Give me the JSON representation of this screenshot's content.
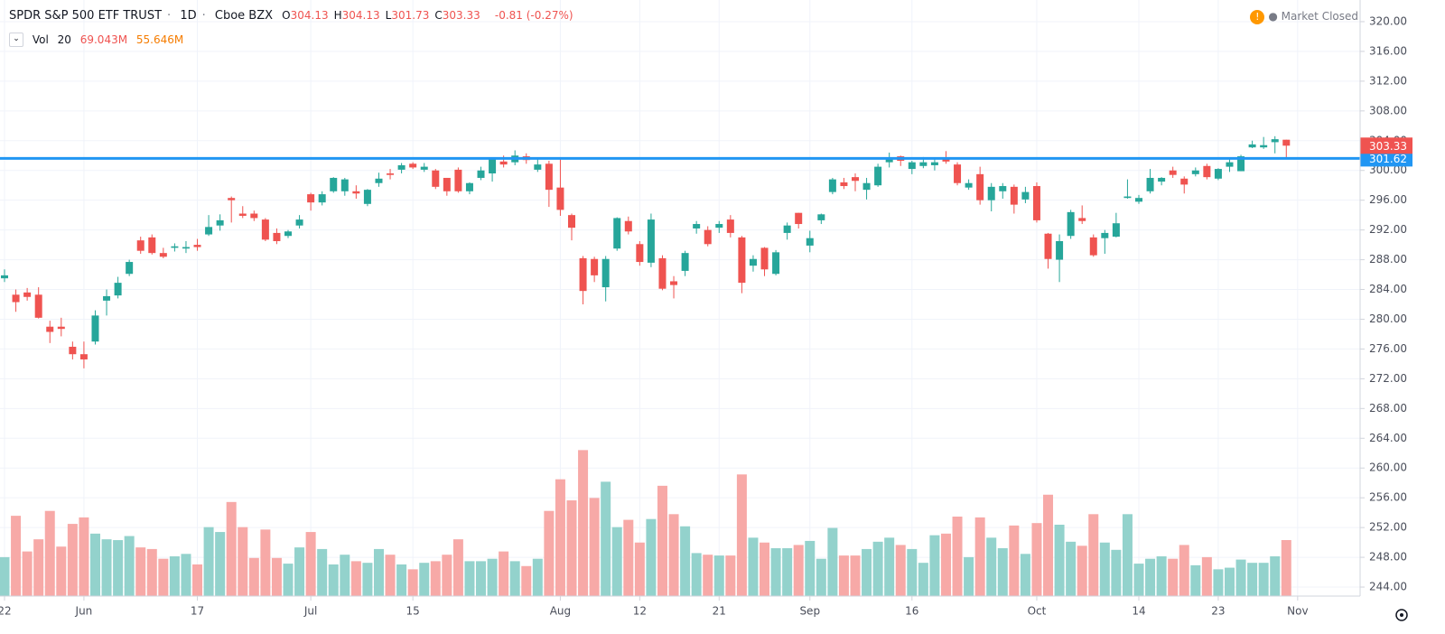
{
  "header": {
    "symbol": "SPDR S&P 500 ETF TRUST",
    "interval": "1D",
    "exchange": "Cboe BZX",
    "ohlc": [
      {
        "key": "O",
        "text": "304.13"
      },
      {
        "key": "H",
        "text": "304.13"
      },
      {
        "key": "L",
        "text": "301.73"
      },
      {
        "key": "C",
        "text": "303.33"
      }
    ],
    "change": "-0.81 (-0.27%)",
    "status": "Market Closed",
    "volume_study": {
      "name": "Vol",
      "length": "20",
      "value": "69.043M",
      "average": "55.646M"
    }
  },
  "chart_data": {
    "type": "candlestick",
    "categories": [
      "22",
      null,
      null,
      null,
      null,
      null,
      null,
      "Jun",
      null,
      null,
      null,
      null,
      null,
      null,
      null,
      null,
      null,
      "17",
      null,
      null,
      null,
      null,
      null,
      null,
      null,
      null,
      null,
      "Jul",
      null,
      null,
      null,
      null,
      null,
      null,
      null,
      null,
      "15",
      null,
      null,
      null,
      null,
      null,
      null,
      null,
      null,
      null,
      null,
      null,
      null,
      "Aug",
      null,
      null,
      null,
      null,
      null,
      null,
      "12",
      null,
      null,
      null,
      null,
      null,
      null,
      "21",
      null,
      null,
      null,
      null,
      null,
      null,
      null,
      "Sep",
      null,
      null,
      null,
      null,
      null,
      null,
      null,
      null,
      "16",
      null,
      null,
      null,
      null,
      null,
      null,
      null,
      null,
      null,
      null,
      "Oct",
      null,
      null,
      null,
      null,
      null,
      null,
      null,
      null,
      "14",
      null,
      null,
      null,
      null,
      null,
      null,
      "23",
      null,
      null,
      null,
      null,
      null,
      null,
      "Nov"
    ],
    "open": [
      285.5,
      283.3,
      283.6,
      283.3,
      279.0,
      279.0,
      276.3,
      275.3,
      277.0,
      282.5,
      283.2,
      286.1,
      290.6,
      291.0,
      288.9,
      289.6,
      289.5,
      290.0,
      291.4,
      292.6,
      296.3,
      294.2,
      294.2,
      293.4,
      291.6,
      291.2,
      292.6,
      296.8,
      295.7,
      297.2,
      297.2,
      297.2,
      295.5,
      298.3,
      299.6,
      300.1,
      300.9,
      300.1,
      300.0,
      299.0,
      300.1,
      297.2,
      299.0,
      299.6,
      301.2,
      301.1,
      301.9,
      300.1,
      300.9,
      297.7,
      294.0,
      288.2,
      288.1,
      284.3,
      289.5,
      293.2,
      290.1,
      287.6,
      288.2,
      285.1,
      286.5,
      292.2,
      292.0,
      292.3,
      293.4,
      291.0,
      287.2,
      289.6,
      286.1,
      291.6,
      294.3,
      289.9,
      293.3,
      297.1,
      298.4,
      299.1,
      297.4,
      298.0,
      301.1,
      301.9,
      300.2,
      300.6,
      300.7,
      301.7,
      300.8,
      297.7,
      299.5,
      296.0,
      297.2,
      297.8,
      296.1,
      297.9,
      291.5,
      288.0,
      291.2,
      293.6,
      291.0,
      290.9,
      291.1,
      296.3,
      295.8,
      297.2,
      298.5,
      300.0,
      298.9,
      299.5,
      300.6,
      298.9,
      300.5,
      299.9,
      303.1,
      303.1,
      303.8,
      304.13,
      null
    ],
    "high": [
      286.7,
      284.0,
      284.2,
      284.3,
      279.8,
      280.2,
      277.0,
      277.0,
      281.2,
      284.0,
      285.7,
      288.0,
      291.1,
      291.4,
      289.6,
      290.2,
      290.5,
      290.8,
      294.0,
      294.1,
      296.5,
      295.2,
      294.6,
      293.6,
      292.2,
      292.0,
      294.0,
      297.0,
      297.2,
      299.1,
      299.0,
      298.0,
      297.5,
      299.7,
      300.2,
      301.0,
      301.1,
      301.0,
      300.2,
      299.0,
      300.4,
      298.4,
      300.5,
      301.7,
      302.0,
      302.7,
      302.3,
      301.7,
      301.3,
      301.5,
      294.2,
      288.5,
      288.4,
      288.5,
      293.7,
      293.8,
      290.5,
      294.2,
      288.6,
      285.8,
      289.2,
      293.2,
      292.5,
      293.2,
      294.0,
      291.2,
      288.6,
      289.7,
      289.3,
      293.0,
      294.3,
      291.9,
      294.2,
      299.0,
      299.0,
      299.6,
      299.0,
      300.9,
      302.4,
      302.0,
      301.3,
      301.8,
      301.6,
      302.6,
      301.1,
      298.8,
      300.5,
      298.3,
      298.3,
      298.1,
      297.8,
      298.4,
      291.6,
      291.4,
      294.7,
      295.3,
      291.4,
      292.0,
      294.3,
      298.8,
      296.7,
      300.2,
      299.1,
      300.5,
      299.2,
      300.4,
      300.9,
      300.3,
      301.6,
      302.1,
      304.0,
      304.5,
      304.6,
      304.13,
      null
    ],
    "low": [
      285.0,
      281.0,
      282.5,
      280.1,
      276.8,
      277.7,
      274.6,
      273.4,
      276.6,
      280.5,
      282.8,
      285.8,
      288.8,
      288.7,
      288.2,
      289.1,
      288.9,
      289.2,
      291.2,
      291.9,
      293.0,
      293.6,
      293.2,
      290.5,
      290.1,
      290.9,
      292.2,
      294.6,
      295.3,
      297.0,
      296.6,
      296.2,
      295.2,
      297.8,
      298.8,
      299.6,
      300.2,
      299.8,
      297.5,
      296.6,
      297.0,
      296.8,
      298.7,
      298.5,
      300.4,
      300.7,
      300.9,
      299.8,
      295.1,
      293.9,
      290.6,
      282.0,
      285.0,
      282.4,
      289.2,
      291.4,
      287.2,
      287.0,
      283.9,
      282.8,
      285.8,
      291.5,
      289.8,
      291.6,
      291.0,
      283.5,
      286.4,
      285.8,
      285.9,
      290.7,
      292.2,
      289.0,
      292.8,
      296.8,
      297.5,
      297.2,
      296.1,
      297.8,
      300.4,
      300.6,
      299.5,
      300.3,
      300.0,
      300.9,
      298.0,
      297.4,
      295.4,
      294.5,
      296.2,
      294.2,
      295.6,
      293.0,
      286.8,
      285.0,
      290.8,
      292.8,
      288.4,
      288.8,
      291.0,
      296.2,
      295.5,
      296.9,
      298.0,
      299.0,
      296.9,
      299.2,
      298.8,
      298.7,
      299.8,
      299.9,
      303.0,
      302.9,
      302.3,
      301.73,
      null
    ],
    "close": [
      285.9,
      282.3,
      283.0,
      280.2,
      278.3,
      278.7,
      275.3,
      274.6,
      280.5,
      283.1,
      284.9,
      287.7,
      289.2,
      288.9,
      288.4,
      289.8,
      289.7,
      289.7,
      292.4,
      293.3,
      296.0,
      293.9,
      293.6,
      290.7,
      290.5,
      291.8,
      293.4,
      295.7,
      296.8,
      299.0,
      298.8,
      296.9,
      297.4,
      298.9,
      299.4,
      300.7,
      300.4,
      300.5,
      297.8,
      297.2,
      297.2,
      298.3,
      300.0,
      301.6,
      300.8,
      302.0,
      301.4,
      300.8,
      297.4,
      294.7,
      292.3,
      283.8,
      285.9,
      288.1,
      293.6,
      291.8,
      287.7,
      293.4,
      284.1,
      284.6,
      288.9,
      292.8,
      290.1,
      292.8,
      291.6,
      284.9,
      288.1,
      286.7,
      289.0,
      292.6,
      292.8,
      290.9,
      294.1,
      298.8,
      297.9,
      298.6,
      298.3,
      300.5,
      301.7,
      301.3,
      301.1,
      301.1,
      301.1,
      301.2,
      298.3,
      298.3,
      296.0,
      297.8,
      297.9,
      295.4,
      297.1,
      293.3,
      288.1,
      290.5,
      294.4,
      293.2,
      288.6,
      291.6,
      292.9,
      296.5,
      296.3,
      299.0,
      299.0,
      299.4,
      298.1,
      300.0,
      299.1,
      300.2,
      301.1,
      301.9,
      303.5,
      303.4,
      304.2,
      303.33,
      null
    ],
    "volume": [
      48,
      99,
      55,
      70,
      105,
      61,
      89,
      97,
      77,
      70,
      69,
      74,
      60,
      58,
      46,
      49,
      52,
      39,
      85,
      79,
      116,
      85,
      47,
      82,
      47,
      40,
      60,
      79,
      58,
      39,
      51,
      43,
      41,
      58,
      51,
      39,
      33,
      41,
      43,
      51,
      70,
      43,
      43,
      46,
      55,
      43,
      37,
      46,
      105,
      144,
      118,
      180,
      121,
      141,
      85,
      94,
      66,
      95,
      136,
      101,
      86,
      53,
      51,
      50,
      50,
      150,
      72,
      66,
      59,
      59,
      63,
      68,
      46,
      84,
      50,
      50,
      58,
      67,
      72,
      63,
      58,
      41,
      75,
      77,
      98,
      48,
      97,
      72,
      59,
      87,
      52,
      90,
      125,
      88,
      67,
      62,
      101,
      66,
      57,
      101,
      40,
      46,
      49,
      46,
      63,
      38,
      48,
      33,
      35,
      45,
      41,
      41,
      49,
      69.043,
      null
    ],
    "up_color": "#26a69a",
    "down_color": "#ef5350",
    "volume_up_color": "#93d2cc",
    "volume_down_color": "#f7a9a7",
    "ylim": [
      242.79,
      322.91
    ],
    "yticks": [
      {
        "value": 244,
        "label": "244.00"
      },
      {
        "value": 248,
        "label": "248.00"
      },
      {
        "value": 252,
        "label": "252.00"
      },
      {
        "value": 256,
        "label": "256.00"
      },
      {
        "value": 260,
        "label": "260.00"
      },
      {
        "value": 264,
        "label": "264.00"
      },
      {
        "value": 268,
        "label": "268.00"
      },
      {
        "value": 272,
        "label": "272.00"
      },
      {
        "value": 276,
        "label": "276.00"
      },
      {
        "value": 280,
        "label": "280.00"
      },
      {
        "value": 284,
        "label": "284.00"
      },
      {
        "value": 288,
        "label": "288.00"
      },
      {
        "value": 292,
        "label": "292.00"
      },
      {
        "value": 296,
        "label": "296.00"
      },
      {
        "value": 300,
        "label": "300.00"
      },
      {
        "value": 304,
        "label": "304.00"
      },
      {
        "value": 308,
        "label": "308.00"
      },
      {
        "value": 312,
        "label": "312.00"
      },
      {
        "value": 316,
        "label": "316.00"
      },
      {
        "value": 320,
        "label": "320.00"
      }
    ],
    "y2lim": [
      0,
      735
    ],
    "grid": true,
    "hline": {
      "value": 301.62,
      "color": "#2196f3"
    }
  }
}
